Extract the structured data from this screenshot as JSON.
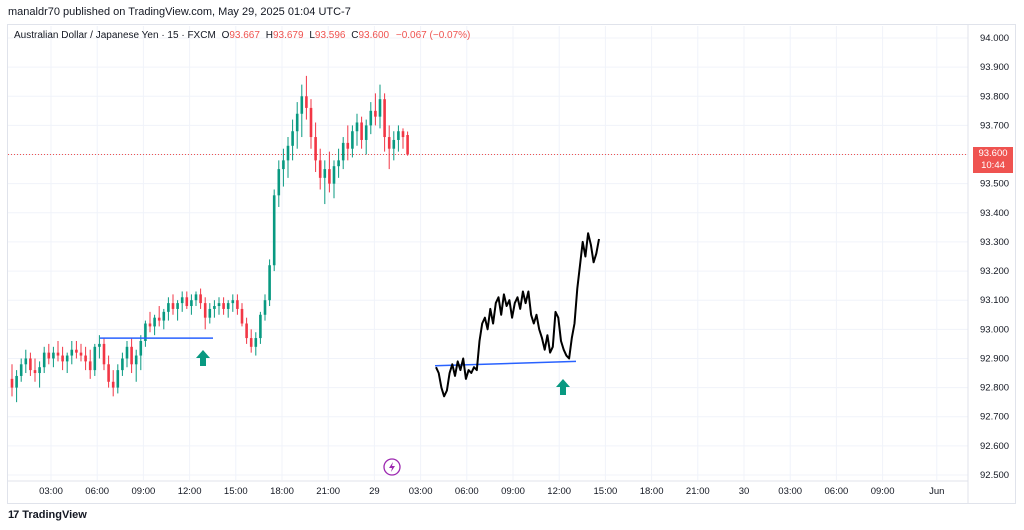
{
  "header": {
    "published": "manaldr70 published on TradingView.com, May 29, 2025 01:04 UTC-7"
  },
  "legend": {
    "symbol": "Australian Dollar / Japanese Yen · 15 · FXCM",
    "o_label": "O",
    "o": "93.667",
    "h_label": "H",
    "h": "93.679",
    "l_label": "L",
    "l": "93.596",
    "c_label": "C",
    "c": "93.600",
    "change": "−0.067 (−0.07%)"
  },
  "price_tag": {
    "price": "93.600",
    "countdown": "10:44"
  },
  "footer": {
    "brand": "TradingView",
    "logo": "17"
  },
  "colors": {
    "up": "#089981",
    "down": "#f23645",
    "line": "#000000",
    "support": "#2962ff",
    "arrow": "#089981",
    "lightning": "#9c27b0"
  },
  "chart_data": {
    "type": "candlestick",
    "symbol": "AUDJPY",
    "interval": "15",
    "y_axis": {
      "ticks": [
        "94.000",
        "93.900",
        "93.800",
        "93.700",
        "93.600",
        "93.500",
        "93.400",
        "93.300",
        "93.200",
        "93.100",
        "93.000",
        "92.900",
        "92.800",
        "92.700",
        "92.600",
        "92.500"
      ],
      "range": [
        92.5,
        94.0
      ]
    },
    "x_axis": {
      "ticks": [
        "03:00",
        "06:00",
        "09:00",
        "12:00",
        "15:00",
        "18:00",
        "21:00",
        "29",
        "03:00",
        "06:00",
        "09:00",
        "12:00",
        "15:00",
        "18:00",
        "21:00",
        "30",
        "03:00",
        "06:00",
        "09:00",
        "Jun"
      ]
    },
    "last_price": 93.6,
    "candles": [
      [
        92.83,
        92.88,
        92.77,
        92.8
      ],
      [
        92.8,
        92.86,
        92.75,
        92.84
      ],
      [
        92.84,
        92.9,
        92.82,
        92.88
      ],
      [
        92.88,
        92.93,
        92.85,
        92.9
      ],
      [
        92.9,
        92.92,
        92.84,
        92.86
      ],
      [
        92.86,
        92.9,
        92.82,
        92.85
      ],
      [
        92.85,
        92.89,
        92.8,
        92.87
      ],
      [
        92.87,
        92.94,
        92.85,
        92.92
      ],
      [
        92.92,
        92.95,
        92.88,
        92.9
      ],
      [
        92.9,
        92.94,
        92.87,
        92.92
      ],
      [
        92.92,
        92.96,
        92.89,
        92.91
      ],
      [
        92.91,
        92.94,
        92.86,
        92.89
      ],
      [
        92.89,
        92.92,
        92.85,
        92.91
      ],
      [
        92.91,
        92.96,
        92.88,
        92.93
      ],
      [
        92.93,
        92.96,
        92.9,
        92.92
      ],
      [
        92.92,
        92.95,
        92.89,
        92.91
      ],
      [
        92.91,
        92.94,
        92.86,
        92.89
      ],
      [
        92.89,
        92.93,
        92.83,
        92.86
      ],
      [
        92.86,
        92.95,
        92.84,
        92.94
      ],
      [
        92.94,
        92.98,
        92.9,
        92.95
      ],
      [
        92.95,
        92.97,
        92.86,
        92.88
      ],
      [
        92.88,
        92.91,
        92.8,
        92.82
      ],
      [
        92.82,
        92.86,
        92.77,
        92.8
      ],
      [
        92.8,
        92.88,
        92.78,
        92.86
      ],
      [
        92.86,
        92.92,
        92.84,
        92.9
      ],
      [
        92.9,
        92.96,
        92.87,
        92.94
      ],
      [
        92.94,
        92.97,
        92.85,
        92.88
      ],
      [
        92.88,
        92.93,
        92.82,
        92.91
      ],
      [
        92.91,
        92.98,
        92.86,
        92.96
      ],
      [
        92.96,
        93.03,
        92.94,
        93.02
      ],
      [
        93.02,
        93.06,
        92.99,
        93.01
      ],
      [
        93.01,
        93.05,
        92.98,
        93.04
      ],
      [
        93.04,
        93.08,
        93.01,
        93.03
      ],
      [
        93.03,
        93.07,
        93.0,
        93.06
      ],
      [
        93.06,
        93.11,
        93.03,
        93.09
      ],
      [
        93.09,
        93.12,
        93.05,
        93.07
      ],
      [
        93.07,
        93.1,
        93.03,
        93.09
      ],
      [
        93.09,
        93.13,
        93.06,
        93.11
      ],
      [
        93.11,
        93.13,
        93.07,
        93.08
      ],
      [
        93.08,
        93.12,
        93.05,
        93.1
      ],
      [
        93.1,
        93.13,
        93.08,
        93.12
      ],
      [
        93.12,
        93.14,
        93.07,
        93.09
      ],
      [
        93.09,
        93.11,
        93.0,
        93.04
      ],
      [
        93.04,
        93.09,
        93.02,
        93.07
      ],
      [
        93.07,
        93.1,
        93.04,
        93.08
      ],
      [
        93.08,
        93.11,
        93.05,
        93.09
      ],
      [
        93.09,
        93.11,
        93.05,
        93.07
      ],
      [
        93.07,
        93.1,
        93.04,
        93.09
      ],
      [
        93.09,
        93.12,
        93.06,
        93.1
      ],
      [
        93.1,
        93.12,
        93.05,
        93.07
      ],
      [
        93.07,
        93.09,
        93.01,
        93.02
      ],
      [
        93.02,
        93.04,
        92.95,
        92.97
      ],
      [
        92.97,
        93.0,
        92.92,
        92.94
      ],
      [
        92.94,
        92.99,
        92.91,
        92.97
      ],
      [
        92.97,
        93.06,
        92.95,
        93.05
      ],
      [
        93.05,
        93.12,
        93.03,
        93.1
      ],
      [
        93.1,
        93.24,
        93.08,
        93.22
      ],
      [
        93.22,
        93.48,
        93.2,
        93.46
      ],
      [
        93.46,
        93.58,
        93.42,
        93.55
      ],
      [
        93.55,
        93.62,
        93.49,
        93.58
      ],
      [
        93.58,
        93.66,
        93.52,
        93.63
      ],
      [
        93.63,
        93.72,
        93.58,
        93.68
      ],
      [
        93.68,
        93.78,
        93.62,
        93.74
      ],
      [
        93.74,
        93.84,
        93.66,
        93.8
      ],
      [
        93.8,
        93.87,
        93.72,
        93.76
      ],
      [
        93.76,
        93.79,
        93.62,
        93.66
      ],
      [
        93.66,
        93.71,
        93.54,
        93.58
      ],
      [
        93.58,
        93.62,
        93.48,
        93.52
      ],
      [
        93.52,
        93.58,
        93.43,
        93.55
      ],
      [
        93.55,
        93.61,
        93.47,
        93.5
      ],
      [
        93.5,
        93.58,
        93.45,
        93.56
      ],
      [
        93.56,
        93.62,
        93.52,
        93.58
      ],
      [
        93.58,
        93.66,
        93.55,
        93.64
      ],
      [
        93.64,
        93.7,
        93.58,
        93.62
      ],
      [
        93.62,
        93.7,
        93.59,
        93.68
      ],
      [
        93.68,
        93.74,
        93.63,
        93.71
      ],
      [
        93.71,
        93.73,
        93.62,
        93.65
      ],
      [
        93.65,
        93.72,
        93.6,
        93.7
      ],
      [
        93.7,
        93.78,
        93.67,
        93.75
      ],
      [
        93.75,
        93.81,
        93.7,
        93.73
      ],
      [
        93.73,
        93.84,
        93.69,
        93.79
      ],
      [
        93.79,
        93.81,
        93.61,
        93.66
      ],
      [
        93.66,
        93.7,
        93.55,
        93.62
      ],
      [
        93.62,
        93.68,
        93.58,
        93.65
      ],
      [
        93.65,
        93.7,
        93.61,
        93.68
      ],
      [
        93.68,
        93.69,
        93.62,
        93.66
      ],
      [
        93.667,
        93.679,
        93.596,
        93.6
      ]
    ],
    "sketch_line": [
      [
        92.87,
        92.85,
        92.8,
        92.77,
        92.79,
        92.85,
        92.88,
        92.84,
        92.89,
        92.86,
        92.9,
        92.83,
        92.86,
        92.85,
        92.87
      ],
      [
        92.86,
        92.96,
        93.02,
        93.04,
        93.0,
        93.07,
        93.02,
        93.09,
        93.11,
        93.05,
        93.12,
        93.08,
        93.1,
        93.04,
        93.09
      ],
      [
        93.11,
        93.07,
        93.13,
        93.09,
        93.13,
        93.05,
        93.02,
        93.05,
        93.0,
        92.97,
        92.93,
        92.98,
        92.92,
        92.94,
        93.06
      ],
      [
        93.04,
        92.96,
        92.93,
        92.91,
        92.9,
        92.97,
        93.02,
        93.14,
        93.22,
        93.3,
        93.25,
        93.33,
        93.29,
        93.23,
        93.26,
        93.31
      ]
    ],
    "support_levels": [
      92.97,
      92.89
    ],
    "annotations": [
      "up-arrow",
      "up-arrow",
      "lightning"
    ]
  }
}
